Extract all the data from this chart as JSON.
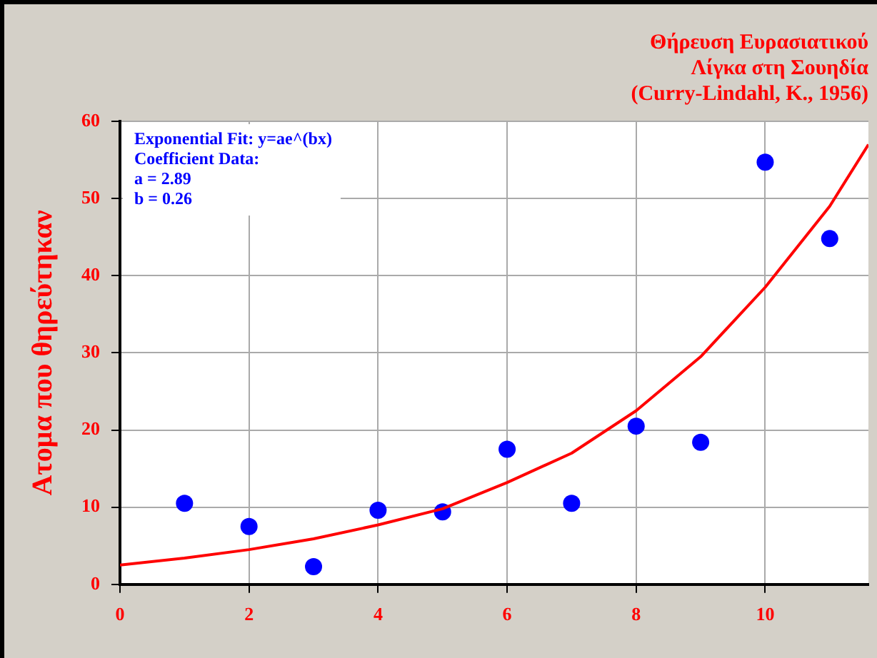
{
  "chart_data": {
    "type": "scatter",
    "title": "Θήρευση Ευρασιατικού\nΛίγκα στη Σουηδία\n(Curry-Lindahl, K., 1956)",
    "ylabel": "Ατομα που θηρεύτηκαν",
    "annotations": [
      "Exponential Fit: y=ae^(bx)",
      "Coefficient Data:",
      "a = 2.89",
      "b = 0.26"
    ],
    "series": [
      {
        "color": "#0000ff",
        "x": [
          1,
          2,
          3,
          4,
          5,
          6,
          7,
          8,
          9,
          10,
          11
        ],
        "values": [
          10.5,
          7.5,
          2.3,
          9.6,
          9.4,
          17.5,
          10.5,
          20.5,
          18.4,
          54.7,
          44.8
        ]
      },
      {
        "type": "line",
        "color": "#ff0000",
        "marker": "none",
        "x": [
          0,
          1,
          2,
          3,
          4,
          5,
          6,
          7,
          8,
          9,
          10,
          11,
          11.6
        ],
        "values": [
          2.5,
          3.4,
          4.5,
          5.9,
          7.7,
          9.8,
          13.2,
          17,
          22.5,
          29.5,
          38.5,
          49,
          57
        ]
      }
    ],
    "xlim": [
      0,
      11.6
    ],
    "xticks": [
      0,
      2,
      4,
      6,
      8,
      10
    ],
    "ylim": [
      0,
      60
    ],
    "yticks": [
      0,
      10,
      20,
      30,
      40,
      50,
      60
    ],
    "grid": true,
    "legend": false,
    "marker": "circle"
  }
}
